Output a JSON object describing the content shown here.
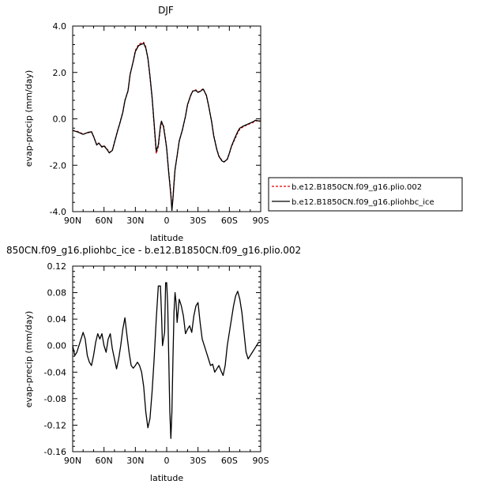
{
  "chart_data": [
    {
      "type": "line",
      "title": "DJF",
      "xlabel": "latitude",
      "ylabel": "evap-precip (mm/day)",
      "xlim": [
        90,
        -90
      ],
      "ylim": [
        -4.0,
        4.0
      ],
      "x_ticks": [
        90,
        60,
        30,
        0,
        -30,
        -60,
        -90
      ],
      "x_tick_labels": [
        "90N",
        "60N",
        "30N",
        "0",
        "30S",
        "60S",
        "90S"
      ],
      "y_ticks": [
        -4.0,
        -2.0,
        0.0,
        2.0,
        4.0
      ],
      "y_tick_labels": [
        "-4.0",
        "-2.0",
        "0.0",
        "2.0",
        "4.0"
      ],
      "legend_position": "right",
      "x": [
        90,
        85,
        80,
        75,
        72,
        70,
        67,
        65,
        62,
        60,
        57,
        55,
        52,
        50,
        47,
        45,
        42,
        40,
        37,
        35,
        32,
        30,
        27,
        25,
        22,
        20,
        18,
        16,
        14,
        12,
        10,
        8,
        6,
        5,
        3,
        1,
        0,
        -2,
        -4,
        -5,
        -6,
        -7,
        -8,
        -10,
        -12,
        -15,
        -18,
        -20,
        -23,
        -25,
        -28,
        -30,
        -32,
        -35,
        -38,
        -40,
        -43,
        -45,
        -48,
        -50,
        -53,
        -55,
        -58,
        -60,
        -62,
        -65,
        -68,
        -70,
        -73,
        -75,
        -78,
        -80,
        -83,
        -85,
        -87,
        -90
      ],
      "series": [
        {
          "name": "b.e12.B1850CN.f09_g16.plio.002",
          "color": "#dd0000",
          "dash": "dashed",
          "values": [
            -0.5,
            -0.55,
            -0.65,
            -0.6,
            -0.55,
            -0.75,
            -1.1,
            -1.05,
            -1.2,
            -1.15,
            -1.3,
            -1.45,
            -1.35,
            -1.0,
            -0.5,
            -0.2,
            0.3,
            0.8,
            1.2,
            1.9,
            2.5,
            2.95,
            3.2,
            3.25,
            3.3,
            3.1,
            2.6,
            1.8,
            0.9,
            -0.3,
            -1.5,
            -1.2,
            -0.4,
            -0.2,
            -0.3,
            -0.9,
            -1.3,
            -2.3,
            -3.2,
            -3.85,
            -3.4,
            -2.8,
            -2.2,
            -1.6,
            -0.95,
            -0.5,
            0.1,
            0.6,
            1.0,
            1.2,
            1.25,
            1.15,
            1.2,
            1.3,
            1.0,
            0.6,
            -0.1,
            -0.7,
            -1.3,
            -1.6,
            -1.8,
            -1.85,
            -1.75,
            -1.5,
            -1.2,
            -0.9,
            -0.6,
            -0.45,
            -0.35,
            -0.3,
            -0.25,
            -0.2,
            -0.15,
            -0.08,
            -0.1,
            -0.1
          ]
        },
        {
          "name": "b.e12.B1850CN.f09_g16.pliohbc_ice",
          "color": "#000000",
          "dash": "solid",
          "values": [
            -0.5,
            -0.57,
            -0.67,
            -0.58,
            -0.56,
            -0.76,
            -1.13,
            -1.04,
            -1.22,
            -1.17,
            -1.33,
            -1.47,
            -1.36,
            -1.02,
            -0.52,
            -0.22,
            0.28,
            0.78,
            1.22,
            1.92,
            2.48,
            2.9,
            3.15,
            3.2,
            3.25,
            3.05,
            2.62,
            1.85,
            0.95,
            -0.2,
            -1.4,
            -1.12,
            -0.3,
            -0.1,
            -0.35,
            -0.95,
            -1.28,
            -2.35,
            -3.3,
            -3.95,
            -3.45,
            -2.76,
            -2.18,
            -1.58,
            -0.96,
            -0.48,
            0.12,
            0.62,
            1.02,
            1.2,
            1.22,
            1.14,
            1.18,
            1.28,
            1.02,
            0.6,
            -0.12,
            -0.73,
            -1.33,
            -1.62,
            -1.82,
            -1.86,
            -1.74,
            -1.48,
            -1.18,
            -0.85,
            -0.55,
            -0.4,
            -0.32,
            -0.28,
            -0.22,
            -0.18,
            -0.12,
            -0.06,
            -0.08,
            -0.1
          ]
        }
      ]
    },
    {
      "type": "line",
      "title": "850CN.f09_g16.pliohbc_ice - b.e12.B1850CN.f09_g16.plio.002",
      "xlabel": "latitude",
      "ylabel": "evap-precip (mm/day)",
      "xlim": [
        90,
        -90
      ],
      "ylim": [
        -0.16,
        0.12
      ],
      "x_ticks": [
        90,
        60,
        30,
        0,
        -30,
        -60,
        -90
      ],
      "x_tick_labels": [
        "90N",
        "60N",
        "30N",
        "0",
        "30S",
        "60S",
        "90S"
      ],
      "y_ticks": [
        -0.16,
        -0.12,
        -0.08,
        -0.04,
        0.0,
        0.04,
        0.08,
        0.12
      ],
      "y_tick_labels": [
        "-0.16",
        "-0.12",
        "-0.08",
        "-0.04",
        "0.00",
        "0.04",
        "0.08",
        "0.12"
      ],
      "x": [
        90,
        88,
        86,
        84,
        82,
        80,
        78,
        76,
        74,
        72,
        70,
        68,
        66,
        64,
        62,
        60,
        58,
        56,
        54,
        52,
        50,
        48,
        46,
        44,
        42,
        40,
        38,
        36,
        34,
        32,
        30,
        28,
        26,
        24,
        22,
        20,
        18,
        16,
        14,
        12,
        10,
        8,
        6,
        5,
        4,
        2,
        1,
        0,
        -1,
        -2,
        -3,
        -4,
        -5,
        -6,
        -7,
        -8,
        -9,
        -10,
        -12,
        -14,
        -16,
        -18,
        -20,
        -22,
        -24,
        -26,
        -28,
        -30,
        -32,
        -34,
        -36,
        -38,
        -40,
        -42,
        -44,
        -46,
        -48,
        -50,
        -52,
        -54,
        -56,
        -58,
        -60,
        -62,
        -64,
        -66,
        -68,
        -70,
        -72,
        -74,
        -76,
        -78,
        -80,
        -82,
        -84,
        -86,
        -88,
        -90
      ],
      "series": [
        {
          "name": "",
          "color": "#000000",
          "dash": "solid",
          "values": [
            0.0,
            -0.015,
            -0.01,
            0.0,
            0.01,
            0.02,
            0.01,
            -0.015,
            -0.025,
            -0.03,
            -0.015,
            0.005,
            0.018,
            0.01,
            0.018,
            0.0,
            -0.01,
            0.01,
            0.018,
            -0.005,
            -0.02,
            -0.035,
            -0.02,
            0.0,
            0.025,
            0.042,
            0.015,
            -0.01,
            -0.03,
            -0.034,
            -0.03,
            -0.025,
            -0.03,
            -0.04,
            -0.062,
            -0.1,
            -0.124,
            -0.11,
            -0.07,
            -0.02,
            0.04,
            0.09,
            0.09,
            0.05,
            0.0,
            0.02,
            0.095,
            0.095,
            0.06,
            -0.02,
            -0.1,
            -0.14,
            -0.1,
            -0.02,
            0.05,
            0.08,
            0.065,
            0.035,
            0.07,
            0.06,
            0.045,
            0.018,
            0.025,
            0.03,
            0.02,
            0.045,
            0.06,
            0.065,
            0.035,
            0.01,
            0.0,
            -0.01,
            -0.02,
            -0.03,
            -0.028,
            -0.04,
            -0.035,
            -0.03,
            -0.038,
            -0.045,
            -0.03,
            0.0,
            0.02,
            0.04,
            0.06,
            0.075,
            0.082,
            0.07,
            0.05,
            0.02,
            -0.01,
            -0.02,
            -0.015,
            -0.01,
            -0.005,
            0.0,
            0.005,
            0.005
          ]
        }
      ]
    }
  ]
}
